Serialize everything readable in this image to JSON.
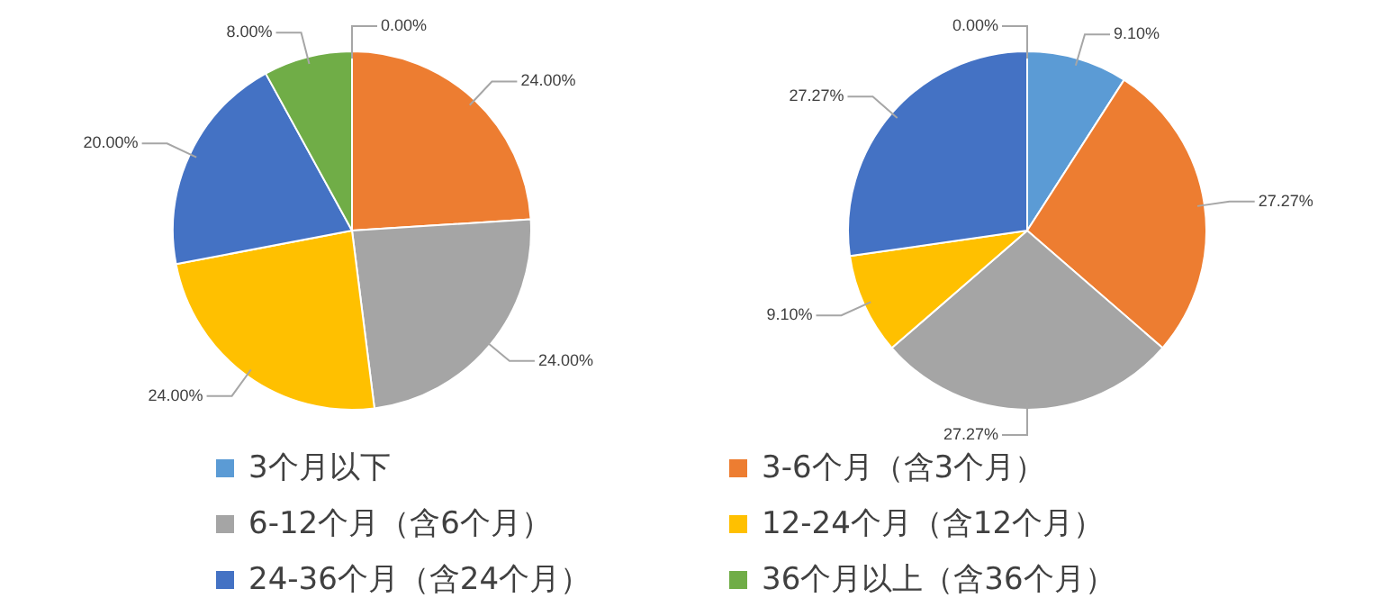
{
  "chart_data": [
    {
      "type": "pie",
      "categories": [
        "3个月以下",
        "3-6个月（含3个月）",
        "6-12个月（含6个月）",
        "12-24个月（含12个月）",
        "24-36个月（含24个月）",
        "36个月以上（含36个月）"
      ],
      "values": [
        0,
        24,
        24,
        24,
        20,
        8
      ],
      "value_labels": [
        "0.00%",
        "24.00%",
        "24.00%",
        "24.00%",
        "20.00%",
        "8.00%"
      ],
      "colors": [
        "#5b9bd5",
        "#ed7d31",
        "#a5a5a5",
        "#ffc000",
        "#4472c4",
        "#70ad47"
      ],
      "legend": "bottom"
    },
    {
      "type": "pie",
      "categories": [
        null,
        null,
        null,
        null,
        null,
        null
      ],
      "values": [
        9.1,
        27.27,
        27.27,
        9.1,
        27.27,
        0
      ],
      "value_labels": [
        "9.10%",
        "27.27%",
        "27.27%",
        "9.10%",
        "27.27%",
        "0.00%"
      ],
      "colors": [
        "#5b9bd5",
        "#ed7d31",
        "#a5a5a5",
        "#ffc000",
        "#4472c4",
        "#70ad47"
      ]
    }
  ]
}
